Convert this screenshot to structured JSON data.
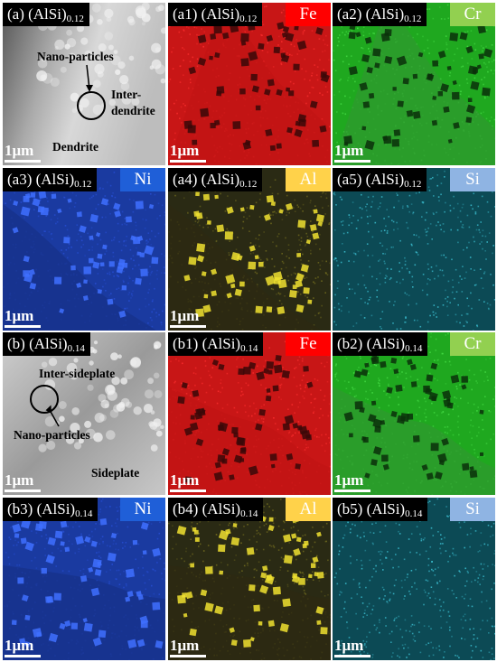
{
  "colors": {
    "label_bg": "#000000",
    "Fe": "#ff0000",
    "Cr": "#92d050",
    "Ni": "#1f5fd8",
    "Al": "#ffd24a",
    "Si": "#8fb4e3",
    "map_Fe": "#cc1414",
    "map_Cr": "#2db82d",
    "map_Ni": "#1c3fb8",
    "map_Al": "#3a3a1a",
    "map_Si": "#1f8fa0"
  },
  "panels": [
    {
      "id": "a",
      "label": "(a) (AlSi)",
      "sub": "0.12",
      "element": "",
      "scale": "1μm",
      "kind": "sem_a"
    },
    {
      "id": "a1",
      "label": "(a1) (AlSi)",
      "sub": "0.12",
      "element": "Fe",
      "scale": "1μm",
      "kind": "Fe"
    },
    {
      "id": "a2",
      "label": "(a2) (AlSi)",
      "sub": "0.12",
      "element": "Cr",
      "scale": "1μm",
      "kind": "Cr"
    },
    {
      "id": "a3",
      "label": "(a3) (AlSi)",
      "sub": "0.12",
      "element": "Ni",
      "scale": "1μm",
      "kind": "Ni"
    },
    {
      "id": "a4",
      "label": "(a4) (AlSi)",
      "sub": "0.12",
      "element": "Al",
      "scale": "1μm",
      "kind": "Al"
    },
    {
      "id": "a5",
      "label": "(a5) (AlSi)",
      "sub": "0.12",
      "element": "Si",
      "scale": "",
      "kind": "Si"
    },
    {
      "id": "b",
      "label": "(b) (AlSi)",
      "sub": "0.14",
      "element": "",
      "scale": "1μm",
      "kind": "sem_b"
    },
    {
      "id": "b1",
      "label": "(b1) (AlSi)",
      "sub": "0.14",
      "element": "Fe",
      "scale": "1μm",
      "kind": "Fe"
    },
    {
      "id": "b2",
      "label": "(b2) (AlSi)",
      "sub": "0.14",
      "element": "Cr",
      "scale": "1μm",
      "kind": "Cr"
    },
    {
      "id": "b3",
      "label": "(b3) (AlSi)",
      "sub": "0.14",
      "element": "Ni",
      "scale": "1μm",
      "kind": "Ni"
    },
    {
      "id": "b4",
      "label": "(b4) (AlSi)",
      "sub": "0.14",
      "element": "Al",
      "scale": "1μm",
      "kind": "Al"
    },
    {
      "id": "b5",
      "label": "(b5) (AlSi)",
      "sub": "0.14",
      "element": "Si",
      "scale": "1μm",
      "kind": "Si"
    }
  ],
  "annotations": {
    "a_nano": "Nano-particles",
    "a_inter_1": "Inter-",
    "a_inter_2": "dendrite",
    "a_dendrite": "Dendrite",
    "b_inter": "Inter-sideplate",
    "b_nano": "Nano-particles",
    "b_sideplate": "Sideplate"
  }
}
